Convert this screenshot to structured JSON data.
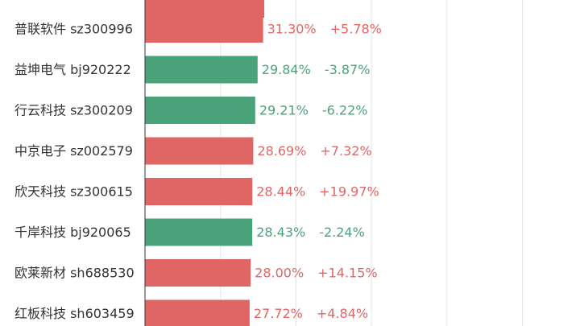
{
  "chart_data": {
    "type": "bar",
    "orientation": "horizontal",
    "value_unit": "%",
    "xlim": [
      0,
      100
    ],
    "grid": true,
    "colors": {
      "up": "#e06666",
      "down": "#4ba37a",
      "axis": "#333333",
      "grid": "#e6e6e6"
    },
    "rows": [
      {
        "name": "普联软件",
        "code": "sz300996",
        "value": 31.3,
        "value_label": "31.30%",
        "change_label": "+5.78%",
        "direction": "up"
      },
      {
        "name": "益坤电气",
        "code": "bj920222",
        "value": 29.84,
        "value_label": "29.84%",
        "change_label": "-3.87%",
        "direction": "down"
      },
      {
        "name": "行云科技",
        "code": "sz300209",
        "value": 29.21,
        "value_label": "29.21%",
        "change_label": "-6.22%",
        "direction": "down"
      },
      {
        "name": "中京电子",
        "code": "sz002579",
        "value": 28.69,
        "value_label": "28.69%",
        "change_label": "+7.32%",
        "direction": "up"
      },
      {
        "name": "欣天科技",
        "code": "sz300615",
        "value": 28.44,
        "value_label": "28.44%",
        "change_label": "+19.97%",
        "direction": "up"
      },
      {
        "name": "千岸科技",
        "code": "bj920065",
        "value": 28.43,
        "value_label": "28.43%",
        "change_label": "-2.24%",
        "direction": "down"
      },
      {
        "name": "欧莱新材",
        "code": "sh688530",
        "value": 28.0,
        "value_label": "28.00%",
        "change_label": "+14.15%",
        "direction": "up"
      },
      {
        "name": "红板科技",
        "code": "sh603459",
        "value": 27.72,
        "value_label": "27.72%",
        "change_label": "+4.84%",
        "direction": "up"
      }
    ],
    "cut_off_previous_row": {
      "value": 31.6,
      "direction": "up"
    }
  }
}
